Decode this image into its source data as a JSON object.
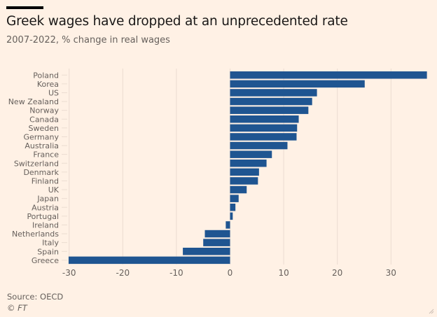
{
  "header": {
    "title": "Greek wages have dropped at an unprecedented rate",
    "subtitle": "2007-2022, % change in real wages"
  },
  "footer": {
    "source": "Source: OECD",
    "copyright": "© FT"
  },
  "colors": {
    "background": "#fff1e5",
    "bar": "#1f5591",
    "grid": "#ebdcd1",
    "text": "#66605c"
  },
  "chart_data": {
    "type": "bar",
    "orientation": "horizontal",
    "title": "Greek wages have dropped at an unprecedented rate",
    "subtitle": "2007-2022, % change in real wages",
    "xlabel": "",
    "ylabel": "",
    "xlim": [
      -30,
      37
    ],
    "xticks": [
      -30,
      -20,
      -10,
      0,
      10,
      20,
      30
    ],
    "grid": true,
    "legend": "none",
    "categories": [
      "Poland",
      "Korea",
      "US",
      "New Zealand",
      "Norway",
      "Canada",
      "Sweden",
      "Germany",
      "Australia",
      "France",
      "Switzerland",
      "Denmark",
      "Finland",
      "UK",
      "Japan",
      "Austria",
      "Portugal",
      "Ireland",
      "Netherlands",
      "Italy",
      "Spain",
      "Greece"
    ],
    "values": [
      36.7,
      25.1,
      16.2,
      15.3,
      14.6,
      12.8,
      12.5,
      12.4,
      10.7,
      7.8,
      6.8,
      5.4,
      5.2,
      3.1,
      1.6,
      1.0,
      0.5,
      -0.8,
      -4.7,
      -5.0,
      -8.8,
      -30.1
    ]
  }
}
